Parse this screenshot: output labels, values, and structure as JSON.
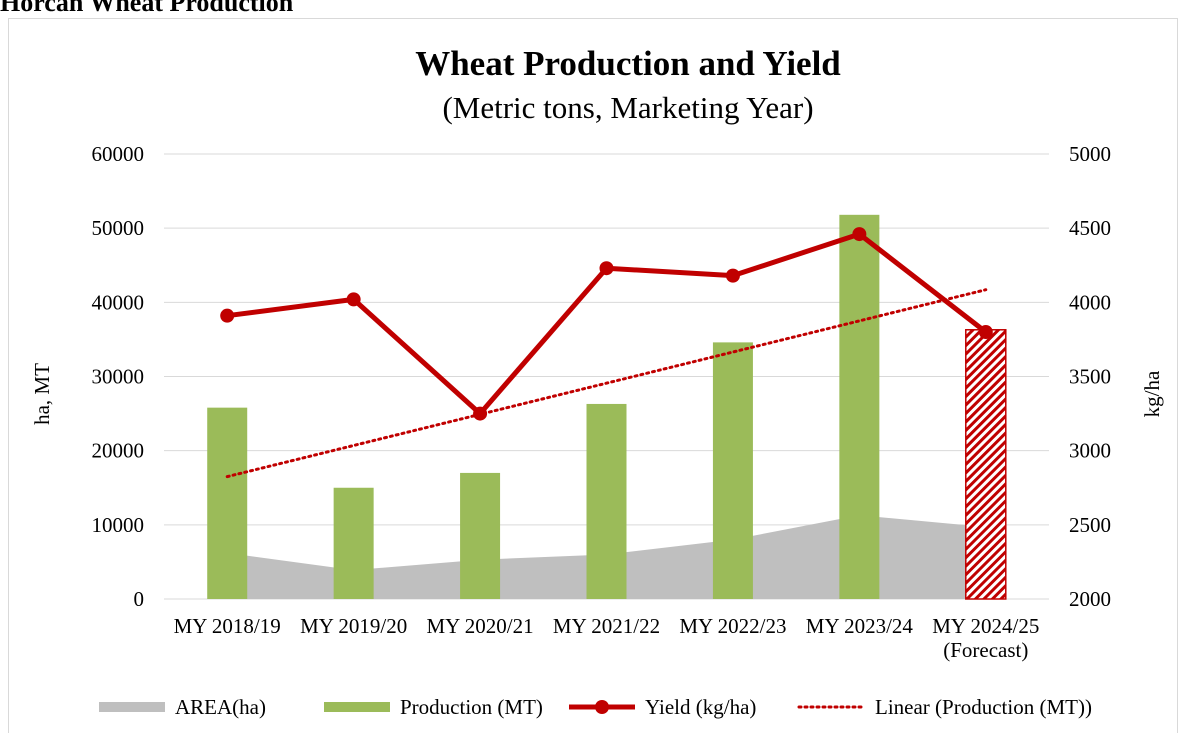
{
  "page": {
    "heading": "Horcan Wheat Production"
  },
  "chart_data": {
    "type": "bar",
    "title": "Wheat Production and Yield",
    "subtitle": "(Metric tons, Marketing Year)",
    "categories": [
      [
        "MY 2018/19"
      ],
      [
        "MY 2019/20"
      ],
      [
        "MY 2020/21"
      ],
      [
        "MY 2021/22"
      ],
      [
        "MY 2022/23"
      ],
      [
        "MY 2023/24"
      ],
      [
        "MY 2024/25",
        "(Forecast)"
      ]
    ],
    "ylabel": "ha, MT",
    "y2label": "kg/ha",
    "ylim": [
      0,
      60000
    ],
    "y2lim": [
      2000,
      5000
    ],
    "yticks": [
      0,
      10000,
      20000,
      30000,
      40000,
      50000,
      60000
    ],
    "y2ticks": [
      2000,
      2500,
      3000,
      3500,
      4000,
      4500,
      5000
    ],
    "grid": true,
    "legend_position": "bottom",
    "series": [
      {
        "name": "AREA(ha)",
        "kind": "area",
        "axis": "left",
        "color": "#bfbfbf",
        "values": [
          6200,
          3900,
          5300,
          6000,
          8000,
          11300,
          9700
        ]
      },
      {
        "name": "Production (MT)",
        "kind": "bar",
        "axis": "left",
        "color": "#9bbb59",
        "forecast_color": "#c00000",
        "forecast_pattern": "diagonal-hatch",
        "values": [
          25800,
          15000,
          17000,
          26300,
          34600,
          51800,
          36300
        ]
      },
      {
        "name": "Yield (kg/ha)",
        "kind": "line-markers",
        "axis": "right",
        "color": "#c00000",
        "values": [
          3910,
          4020,
          3250,
          4230,
          4180,
          4460,
          3800
        ]
      },
      {
        "name": "Linear (Production (MT))",
        "kind": "trendline-dotted",
        "axis": "left",
        "color": "#c00000",
        "values": [
          16500,
          20700,
          24900,
          29100,
          33300,
          37500,
          41700
        ]
      }
    ]
  }
}
